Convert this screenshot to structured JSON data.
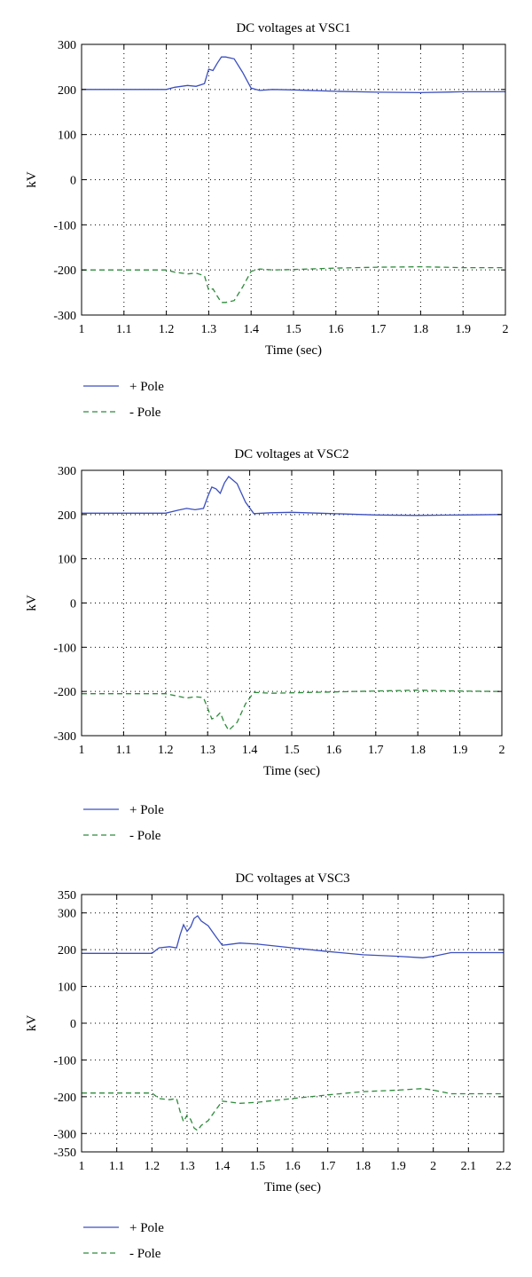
{
  "charts": [
    {
      "type": "line",
      "title": "DC voltages at VSC1",
      "xlabel": "Time (sec)",
      "ylabel": "kV",
      "xlim": [
        1,
        2
      ],
      "ylim": [
        -300,
        300
      ],
      "x_ticks": [
        1,
        1.1,
        1.2,
        1.3,
        1.4,
        1.5,
        1.6,
        1.7,
        1.8,
        1.9,
        2
      ],
      "x_tick_labels": [
        "1",
        "1.1",
        "1.2",
        "1.3",
        "1.4",
        "1.5",
        "1.6",
        "1.7",
        "1.8",
        "1.9",
        "2"
      ],
      "y_ticks": [
        300,
        200,
        100,
        0,
        -100,
        -200,
        -300
      ],
      "y_tick_labels": [
        "300",
        "200",
        "100",
        "0",
        "-100",
        "-200",
        "-300"
      ],
      "grid": true,
      "legend": "below",
      "series": [
        {
          "name": "+ Pole",
          "color": "#3b4fc0",
          "dash": "solid",
          "x": [
            1.0,
            1.2,
            1.22,
            1.25,
            1.27,
            1.29,
            1.3,
            1.31,
            1.32,
            1.33,
            1.34,
            1.36,
            1.38,
            1.4,
            1.42,
            1.45,
            1.5,
            1.6,
            1.7,
            1.8,
            1.9,
            2.0
          ],
          "y": [
            200,
            200,
            205,
            209,
            207,
            213,
            245,
            242,
            258,
            272,
            272,
            268,
            238,
            203,
            198,
            200,
            199,
            196,
            194,
            193,
            195,
            195
          ]
        },
        {
          "name": "- Pole",
          "color": "#2e8b3c",
          "dash": "dashed",
          "x": [
            1.0,
            1.2,
            1.22,
            1.25,
            1.27,
            1.29,
            1.3,
            1.31,
            1.32,
            1.33,
            1.34,
            1.36,
            1.38,
            1.4,
            1.42,
            1.45,
            1.5,
            1.6,
            1.7,
            1.8,
            1.9,
            2.0
          ],
          "y": [
            -200,
            -200,
            -205,
            -209,
            -207,
            -213,
            -245,
            -242,
            -258,
            -272,
            -272,
            -268,
            -238,
            -203,
            -198,
            -200,
            -199,
            -196,
            -194,
            -193,
            -195,
            -195
          ]
        }
      ]
    },
    {
      "type": "line",
      "title": "DC voltages at VSC2",
      "xlabel": "Time (sec)",
      "ylabel": "kV",
      "xlim": [
        1,
        2
      ],
      "ylim": [
        -300,
        300
      ],
      "x_ticks": [
        1,
        1.1,
        1.2,
        1.3,
        1.4,
        1.5,
        1.6,
        1.7,
        1.8,
        1.9,
        2
      ],
      "x_tick_labels": [
        "1",
        "1.1",
        "1.2",
        "1.3",
        "1.4",
        "1.5",
        "1.6",
        "1.7",
        "1.8",
        "1.9",
        "2"
      ],
      "y_ticks": [
        300,
        200,
        100,
        0,
        -100,
        -200,
        -300
      ],
      "y_tick_labels": [
        "300",
        "200",
        "100",
        "0",
        "-100",
        "-200",
        "-300"
      ],
      "grid": true,
      "legend": "below",
      "series": [
        {
          "name": "+ Pole",
          "color": "#3b4fc0",
          "dash": "solid",
          "x": [
            1.0,
            1.2,
            1.23,
            1.25,
            1.27,
            1.29,
            1.3,
            1.31,
            1.32,
            1.33,
            1.34,
            1.35,
            1.37,
            1.39,
            1.41,
            1.45,
            1.5,
            1.6,
            1.7,
            1.8,
            1.9,
            2.0
          ],
          "y": [
            203,
            203,
            210,
            214,
            211,
            214,
            240,
            262,
            258,
            248,
            272,
            286,
            270,
            228,
            202,
            204,
            205,
            202,
            199,
            198,
            199,
            200
          ]
        },
        {
          "name": "- Pole",
          "color": "#2e8b3c",
          "dash": "dashed",
          "x": [
            1.0,
            1.2,
            1.23,
            1.25,
            1.27,
            1.29,
            1.3,
            1.31,
            1.32,
            1.33,
            1.34,
            1.35,
            1.37,
            1.39,
            1.41,
            1.45,
            1.5,
            1.6,
            1.7,
            1.8,
            1.9,
            2.0
          ],
          "y": [
            -205,
            -205,
            -211,
            -215,
            -212,
            -214,
            -238,
            -262,
            -258,
            -248,
            -272,
            -288,
            -270,
            -228,
            -202,
            -204,
            -203,
            -201,
            -199,
            -197,
            -199,
            -200
          ]
        }
      ]
    },
    {
      "type": "line",
      "title": "DC voltages at VSC3",
      "xlabel": "Time (sec)",
      "ylabel": "kV",
      "xlim": [
        1,
        2.2
      ],
      "ylim": [
        -350,
        350
      ],
      "x_ticks": [
        1,
        1.1,
        1.2,
        1.3,
        1.4,
        1.5,
        1.6,
        1.7,
        1.8,
        1.9,
        2,
        2.1,
        2.2
      ],
      "x_tick_labels": [
        "1",
        "1.1",
        "1.2",
        "1.3",
        "1.4",
        "1.5",
        "1.6",
        "1.7",
        "1.8",
        "1.9",
        "2",
        "2.1",
        "2.2"
      ],
      "y_ticks": [
        350,
        300,
        200,
        100,
        0,
        -100,
        -200,
        -300,
        -350
      ],
      "y_tick_labels": [
        "350",
        "300",
        "200",
        "100",
        "0",
        "-100",
        "-200",
        "-300",
        "-350"
      ],
      "grid": true,
      "legend": "below",
      "series": [
        {
          "name": "+ Pole",
          "color": "#3b4fc0",
          "dash": "solid",
          "x": [
            1.0,
            1.2,
            1.22,
            1.25,
            1.27,
            1.28,
            1.29,
            1.3,
            1.31,
            1.32,
            1.33,
            1.34,
            1.36,
            1.38,
            1.4,
            1.45,
            1.5,
            1.6,
            1.7,
            1.8,
            1.9,
            1.97,
            2.0,
            2.05,
            2.1,
            2.2
          ],
          "y": [
            190,
            190,
            205,
            208,
            205,
            240,
            268,
            250,
            262,
            285,
            292,
            278,
            265,
            238,
            212,
            218,
            215,
            205,
            195,
            186,
            182,
            178,
            182,
            192,
            192,
            192
          ]
        },
        {
          "name": "- Pole",
          "color": "#2e8b3c",
          "dash": "dashed",
          "x": [
            1.0,
            1.2,
            1.22,
            1.25,
            1.27,
            1.28,
            1.29,
            1.3,
            1.31,
            1.32,
            1.33,
            1.34,
            1.36,
            1.38,
            1.4,
            1.45,
            1.5,
            1.6,
            1.7,
            1.8,
            1.9,
            1.97,
            2.0,
            2.05,
            2.1,
            2.2
          ],
          "y": [
            -190,
            -190,
            -205,
            -208,
            -205,
            -240,
            -268,
            -250,
            -262,
            -285,
            -292,
            -278,
            -265,
            -238,
            -212,
            -218,
            -215,
            -205,
            -195,
            -186,
            -182,
            -178,
            -182,
            -192,
            -192,
            -192
          ]
        }
      ]
    }
  ]
}
